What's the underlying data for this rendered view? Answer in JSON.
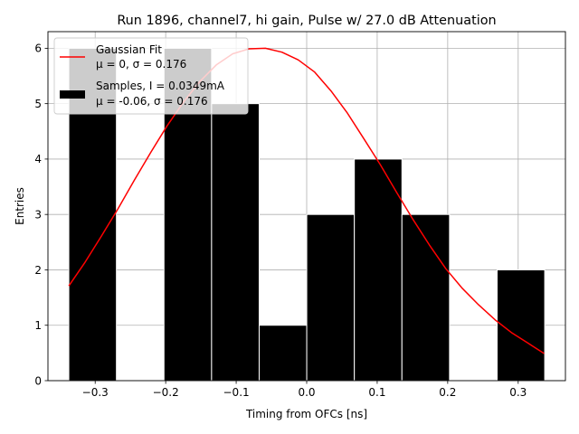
{
  "chart_data": {
    "type": "bar",
    "title": "Run 1896, channel7, hi gain, Pulse w/ 27.0 dB Attenuation",
    "xlabel": "Timing from OFCs [ns]",
    "ylabel": "Entries",
    "xlim": [
      -0.367,
      0.367
    ],
    "ylim": [
      0,
      6.3
    ],
    "xticks": [
      -0.3,
      -0.2,
      -0.1,
      0.0,
      0.1,
      0.2,
      0.3
    ],
    "xtick_labels": [
      "−0.3",
      "−0.2",
      "−0.1",
      "0.0",
      "0.1",
      "0.2",
      "0.3"
    ],
    "yticks": [
      0,
      1,
      2,
      3,
      4,
      5,
      6
    ],
    "ytick_labels": [
      "0",
      "1",
      "2",
      "3",
      "4",
      "5",
      "6"
    ],
    "grid": true,
    "legend_position": "top-left",
    "histogram": {
      "name": "Samples, I = 0.0349mA",
      "stats": "μ = -0.06, σ = 0.176",
      "color": "#000000",
      "bin_edges": [
        -0.3374,
        -0.2699,
        -0.2024,
        -0.1349,
        -0.0674,
        0.0001,
        0.0676,
        0.1351,
        0.2026,
        0.2701,
        0.3376
      ],
      "counts": [
        6,
        0,
        6,
        5,
        1,
        3,
        4,
        3,
        0,
        2
      ]
    },
    "fit": {
      "name": "Gaussian Fit",
      "stats": "μ = 0, σ = 0.176",
      "color": "#ff0000",
      "x": [
        -0.3374,
        -0.3143,
        -0.2911,
        -0.2678,
        -0.2445,
        -0.2212,
        -0.198,
        -0.1747,
        -0.1515,
        -0.1282,
        -0.105,
        -0.0817,
        -0.0585,
        -0.0352,
        -0.012,
        0.0113,
        0.0345,
        0.0578,
        0.081,
        0.1043,
        0.1275,
        0.1508,
        0.174,
        0.1973,
        0.2205,
        0.2438,
        0.267,
        0.2903,
        0.3135,
        0.3368
      ],
      "y": [
        1.71,
        2.14,
        2.61,
        3.1,
        3.62,
        4.12,
        4.6,
        5.03,
        5.4,
        5.7,
        5.9,
        5.99,
        6.0,
        5.93,
        5.79,
        5.57,
        5.23,
        4.83,
        4.37,
        3.9,
        3.4,
        2.91,
        2.45,
        2.02,
        1.67,
        1.37,
        1.1,
        0.87,
        0.68,
        0.49
      ]
    }
  }
}
